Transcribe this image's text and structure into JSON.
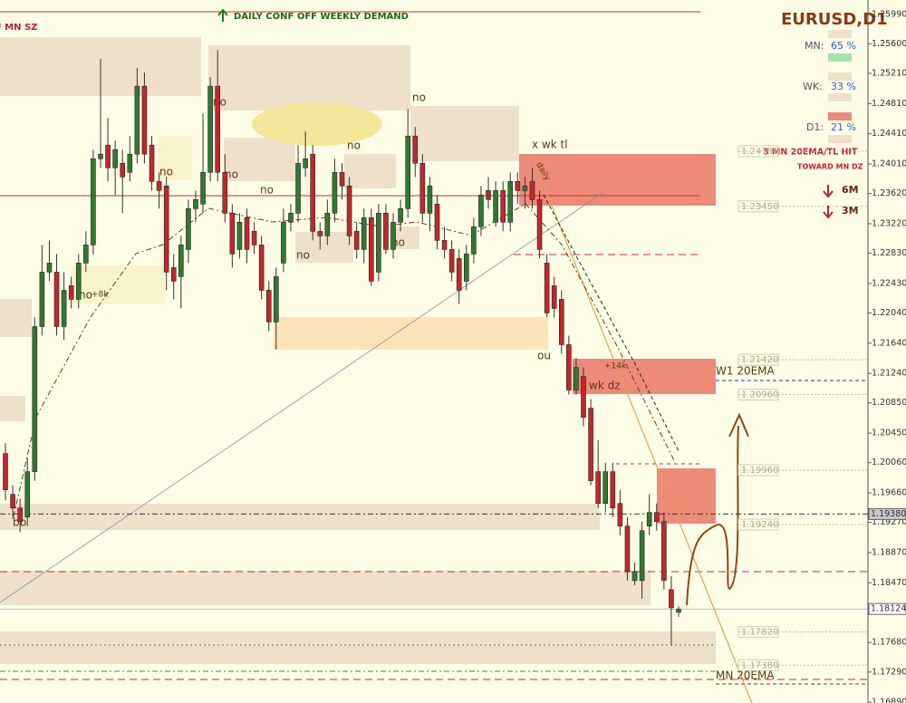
{
  "chart_data": {
    "type": "candlestick",
    "title": "EURUSD,D1",
    "open": [
      1.2018,
      1.1964,
      1.1946,
      1.1934,
      1.1994,
      1.2186,
      1.2258,
      1.2258,
      1.2186,
      1.224,
      1.2222,
      1.227,
      1.2294,
      1.2408,
      1.2426,
      1.2396,
      1.2402,
      1.239,
      1.2414,
      1.2504,
      1.2426,
      1.2378,
      1.2372,
      1.2264,
      1.2252,
      1.2288,
      1.2342,
      1.2348,
      1.239,
      1.2504,
      1.239,
      1.2336,
      1.2288,
      1.233,
      1.2312,
      1.2294,
      1.2234,
      1.2192,
      1.227,
      1.2324,
      1.2336,
      1.2396,
      1.2414,
      1.2312,
      1.2306,
      1.2336,
      1.239,
      1.2372,
      1.2312,
      1.2288,
      1.233,
      1.2258,
      1.2336,
      1.2288,
      1.2324,
      1.2342,
      1.2438,
      1.2402,
      1.2336,
      1.2348,
      1.23,
      1.2288,
      1.2276,
      1.2246,
      1.2282,
      1.2318,
      1.2366,
      1.2324,
      1.2366,
      1.2324,
      1.2378,
      1.2366,
      1.2378,
      1.2354,
      1.227,
      1.224,
      1.2222,
      1.2162,
      1.2102,
      1.212,
      1.2078,
      1.1994,
      1.1952,
      1.1994,
      1.1952,
      1.1922,
      1.185,
      1.185,
      1.1922,
      1.194,
      1.1928,
      1.1838,
      1.1808
    ],
    "high": [
      1.2032,
      1.1976,
      1.1958,
      1.2012,
      1.2198,
      1.2294,
      1.23,
      1.2282,
      1.2258,
      1.2252,
      1.2282,
      1.2312,
      1.242,
      1.254,
      1.2462,
      1.2432,
      1.242,
      1.2438,
      1.2528,
      1.2522,
      1.2438,
      1.239,
      1.2384,
      1.2282,
      1.2306,
      1.2354,
      1.2366,
      1.2468,
      1.2516,
      1.2552,
      1.2414,
      1.2348,
      1.2336,
      1.2342,
      1.2324,
      1.2306,
      1.2246,
      1.2264,
      1.2342,
      1.2348,
      1.2426,
      1.2444,
      1.2426,
      1.2324,
      1.2354,
      1.2408,
      1.2402,
      1.2384,
      1.2324,
      1.2342,
      1.2342,
      1.2348,
      1.2348,
      1.2336,
      1.2354,
      1.2474,
      1.245,
      1.2414,
      1.2384,
      1.236,
      1.2318,
      1.23,
      1.2288,
      1.2294,
      1.233,
      1.2372,
      1.2384,
      1.2378,
      1.2378,
      1.239,
      1.239,
      1.2384,
      1.2396,
      1.2366,
      1.2282,
      1.2252,
      1.2234,
      1.2174,
      1.2144,
      1.2132,
      1.209,
      1.2036,
      1.2006,
      1.2006,
      1.197,
      1.1934,
      1.1874,
      1.1928,
      1.1964,
      1.1952,
      1.194,
      1.1856,
      1.1816
    ],
    "low": [
      1.1956,
      1.1932,
      1.1914,
      1.1922,
      1.1982,
      1.2174,
      1.2246,
      1.2174,
      1.2168,
      1.221,
      1.221,
      1.2258,
      1.2282,
      1.2396,
      1.2378,
      1.236,
      1.2336,
      1.2378,
      1.2402,
      1.2402,
      1.2366,
      1.2342,
      1.2234,
      1.2222,
      1.221,
      1.227,
      1.2324,
      1.2336,
      1.2378,
      1.2378,
      1.2324,
      1.2264,
      1.2276,
      1.227,
      1.2282,
      1.2222,
      1.218,
      1.2156,
      1.2258,
      1.2312,
      1.2324,
      1.2384,
      1.23,
      1.2288,
      1.2294,
      1.2324,
      1.2354,
      1.2294,
      1.2276,
      1.227,
      1.224,
      1.2246,
      1.2282,
      1.2276,
      1.2312,
      1.233,
      1.2384,
      1.2324,
      1.2312,
      1.2288,
      1.2276,
      1.2246,
      1.2216,
      1.2234,
      1.227,
      1.2306,
      1.2342,
      1.2318,
      1.2312,
      1.2312,
      1.2348,
      1.2342,
      1.2342,
      1.2276,
      1.2198,
      1.2198,
      1.215,
      1.2096,
      1.2096,
      1.2054,
      1.1976,
      1.1946,
      1.194,
      1.1934,
      1.191,
      1.185,
      1.1844,
      1.1826,
      1.191,
      1.1916,
      1.1838,
      1.1764,
      1.1802
    ],
    "close": [
      1.197,
      1.1946,
      1.1928,
      1.1994,
      1.2186,
      1.2258,
      1.227,
      1.2186,
      1.2234,
      1.2222,
      1.227,
      1.2294,
      1.2408,
      1.2414,
      1.2396,
      1.242,
      1.2384,
      1.2414,
      1.2504,
      1.2414,
      1.2378,
      1.2366,
      1.2258,
      1.2246,
      1.2294,
      1.2342,
      1.2354,
      1.239,
      1.2504,
      1.239,
      1.2336,
      1.2282,
      1.2324,
      1.2288,
      1.2294,
      1.2234,
      1.2192,
      1.2252,
      1.2324,
      1.2336,
      1.2402,
      1.2408,
      1.2312,
      1.2306,
      1.2336,
      1.239,
      1.2372,
      1.2306,
      1.2288,
      1.233,
      1.2246,
      1.2336,
      1.2288,
      1.2324,
      1.2342,
      1.2438,
      1.2402,
      1.2336,
      1.2372,
      1.23,
      1.2288,
      1.2258,
      1.2234,
      1.2282,
      1.2318,
      1.236,
      1.2354,
      1.2366,
      1.2324,
      1.2378,
      1.2366,
      1.2372,
      1.2354,
      1.2288,
      1.2204,
      1.221,
      1.2162,
      1.2102,
      1.2132,
      1.2066,
      1.1982,
      1.1952,
      1.1994,
      1.1946,
      1.1922,
      1.1862,
      1.1862,
      1.1916,
      1.194,
      1.1928,
      1.185,
      1.1814,
      1.1812
    ],
    "up_color": "#2f7a33",
    "down_color": "#c0282d",
    "ylim": [
      1.1688,
      1.2618
    ],
    "yticks": [
      {
        "value": 1.2599,
        "label": "1.25990"
      },
      {
        "value": 1.256,
        "label": "1.25600"
      },
      {
        "value": 1.2521,
        "label": "1.25210"
      },
      {
        "value": 1.2481,
        "label": "1.24810"
      },
      {
        "value": 1.2441,
        "label": "1.24410"
      },
      {
        "value": 1.2401,
        "label": "1.24010"
      },
      {
        "value": 1.2362,
        "label": "1.23620"
      },
      {
        "value": 1.2322,
        "label": "1.23220"
      },
      {
        "value": 1.2283,
        "label": "1.22830"
      },
      {
        "value": 1.2243,
        "label": "1.22430"
      },
      {
        "value": 1.2204,
        "label": "1.22040"
      },
      {
        "value": 1.2164,
        "label": "1.21640"
      },
      {
        "value": 1.2124,
        "label": "1.21240"
      },
      {
        "value": 1.2085,
        "label": "1.20850"
      },
      {
        "value": 1.2045,
        "label": "1.20450"
      },
      {
        "value": 1.2006,
        "label": "1.20060"
      },
      {
        "value": 1.1966,
        "label": "1.19660"
      },
      {
        "value": 1.1927,
        "label": "1.19270"
      },
      {
        "value": 1.1887,
        "label": "1.18870"
      },
      {
        "value": 1.1847,
        "label": "1.18470"
      },
      {
        "value": 1.1808,
        "label": "1.18080"
      },
      {
        "value": 1.1768,
        "label": "1.17680"
      },
      {
        "value": 1.1729,
        "label": "1.17290"
      },
      {
        "value": 1.1689,
        "label": "1.16890"
      }
    ],
    "levels": [
      {
        "value": 1.2418,
        "label": "1.24180"
      },
      {
        "value": 1.2345,
        "label": "1.23450"
      },
      {
        "value": 1.2142,
        "label": "1.21420"
      },
      {
        "value": 1.2096,
        "label": "1.20960"
      },
      {
        "value": 1.1996,
        "label": "1.19960"
      },
      {
        "value": 1.1924,
        "label": "1.19240"
      },
      {
        "value": 1.1782,
        "label": "1.17820"
      },
      {
        "value": 1.1738,
        "label": "1.17380"
      }
    ],
    "current_prices": [
      {
        "value": 1.1938,
        "label": "1.19380"
      },
      {
        "value": 1.18124,
        "label": "1.18124"
      }
    ]
  },
  "header": {
    "note": "DAILY CONF OFF WEEKLY DEMAND",
    "corner_note": "FF MN SZ"
  },
  "panel": {
    "rows": [
      {
        "label": "MN:",
        "value": "65 %"
      },
      {
        "label": "WK:",
        "value": "33 %"
      },
      {
        "label": "D1:",
        "value": "21 %"
      }
    ],
    "note1": "5 MN 20EMA/TL HIT",
    "note2": "TOWARD MN DZ",
    "target1": "6M",
    "target2": "3M"
  },
  "annotations": [
    "no",
    "no",
    "no",
    "no",
    "no",
    "no",
    "no",
    "no",
    "no",
    "+8k",
    "bb",
    "x wk tl",
    "ou",
    "+14k",
    "wk dz",
    "W1 20EMA",
    "MN 20EMA",
    "daily"
  ]
}
